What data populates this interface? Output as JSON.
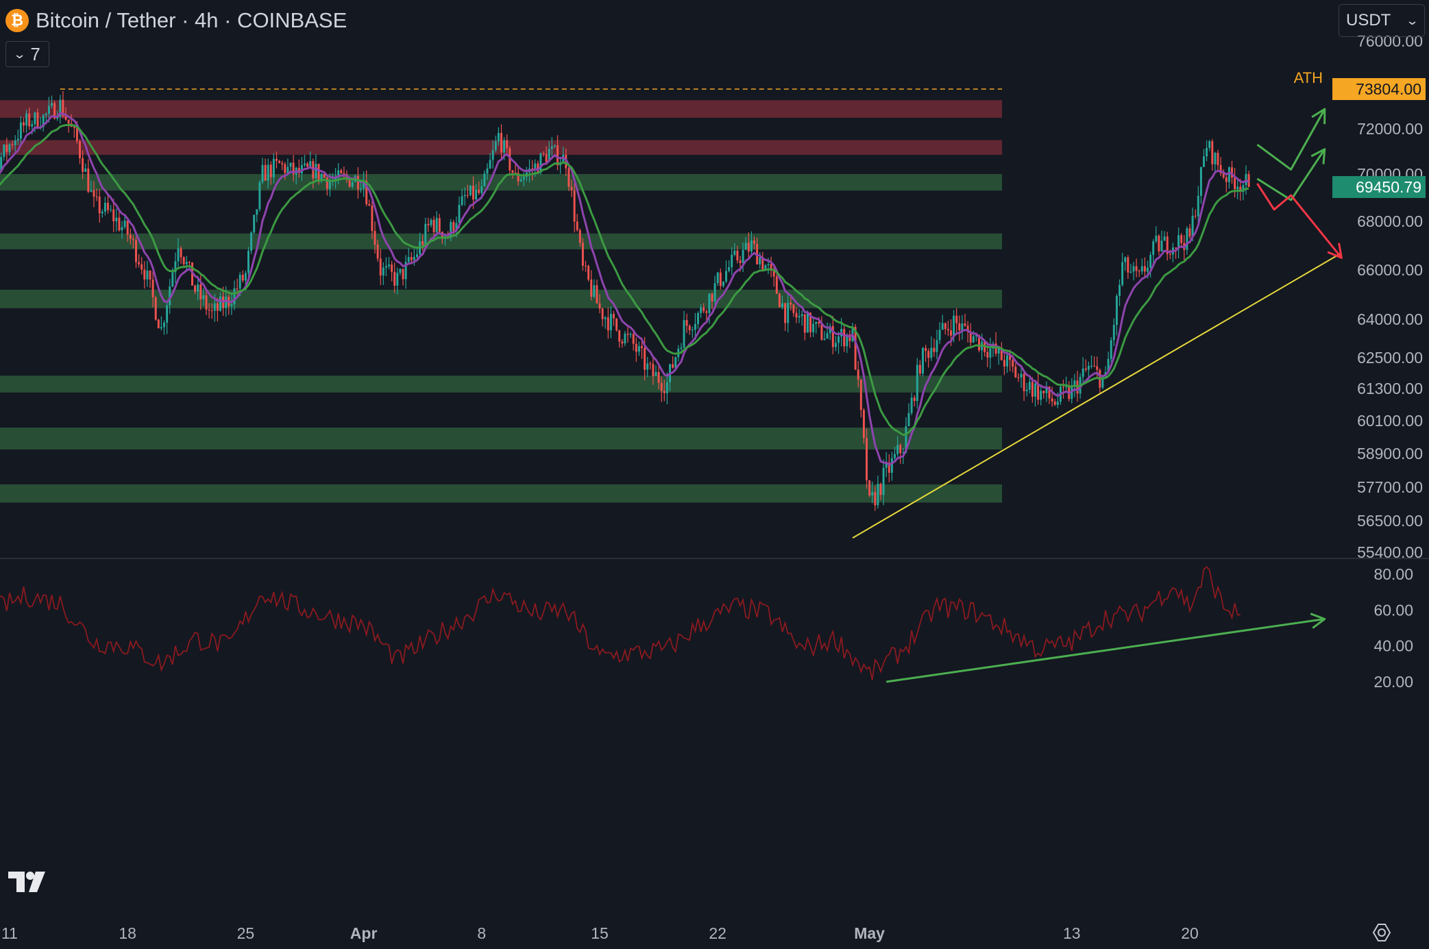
{
  "header": {
    "symbol_title": "Bitcoin / Tether · 4h · COINBASE",
    "coin_icon_glyph": "₿",
    "indicator_count": "7"
  },
  "currency": {
    "label": "USDT"
  },
  "colors": {
    "background": "#141821",
    "support_zone": "#2b5839",
    "resistance_zone": "#6e2a35",
    "candle_up": "#26a69a",
    "candle_down": "#ef5350",
    "ema_fast": "#8e44ad",
    "ema_slow": "#3c9a42",
    "trendline": "#e6d93c",
    "ath_line": "#f5a623",
    "rsi_line": "#8b1a1f",
    "arrow_green": "#4caf50",
    "arrow_red": "#f23645",
    "price_badge": "#1e8c6f"
  },
  "chart_data": [
    {
      "type": "candlestick",
      "title": "Bitcoin / Tether · 4h · COINBASE",
      "y_axis_ticks": [
        76000,
        72000,
        70000,
        68000,
        66000,
        64000,
        62500,
        61300,
        60100,
        58900,
        57700,
        56500,
        55400
      ],
      "y_tick_labels": [
        "76000.00",
        "72000.00",
        "70000.00",
        "68000.00",
        "66000.00",
        "64000.00",
        "62500.00",
        "61300.00",
        "60100.00",
        "58900.00",
        "57700.00",
        "56500.00",
        "55400.00"
      ],
      "x_tick_labels": [
        "11",
        "18",
        "25",
        "Apr",
        "8",
        "15",
        "22",
        "May",
        "13",
        "20"
      ],
      "x_tick_dates": [
        "2024-03-11",
        "2024-03-18",
        "2024-03-25",
        "2024-04-01",
        "2024-04-08",
        "2024-04-15",
        "2024-04-22",
        "2024-05-01",
        "2024-05-13",
        "2024-05-20"
      ],
      "x_range": [
        "2024-03-08",
        "2024-05-31"
      ],
      "ath": {
        "label": "ATH",
        "value": 73804.0,
        "value_label": "73804.00",
        "from_date": "2024-03-14"
      },
      "last_price": {
        "value": 69450.79,
        "label": "69450.79"
      },
      "resistance_zones": [
        [
          72500,
          73300
        ],
        [
          70850,
          71500
        ]
      ],
      "support_zones": [
        [
          69300,
          70000
        ],
        [
          66850,
          67500
        ],
        [
          64450,
          65200
        ],
        [
          61150,
          61800
        ],
        [
          59050,
          59850
        ],
        [
          57150,
          57800
        ]
      ],
      "trendline": {
        "from": {
          "date": "2024-04-30",
          "price": 55900
        },
        "to": {
          "date": "2024-05-29",
          "price": 66700
        }
      },
      "close_path_keypoints": [
        [
          "2024-03-08",
          68800
        ],
        [
          "2024-03-09",
          69600
        ],
        [
          "2024-03-10",
          70200
        ],
        [
          "2024-03-11",
          71300
        ],
        [
          "2024-03-12",
          72300
        ],
        [
          "2024-03-13",
          72500
        ],
        [
          "2024-03-14",
          73100
        ],
        [
          "2024-03-15",
          71400
        ],
        [
          "2024-03-16",
          68700
        ],
        [
          "2024-03-17",
          68300
        ],
        [
          "2024-03-18",
          67500
        ],
        [
          "2024-03-19",
          66000
        ],
        [
          "2024-03-20",
          63600
        ],
        [
          "2024-03-21",
          67200
        ],
        [
          "2024-03-22",
          65200
        ],
        [
          "2024-03-23",
          64200
        ],
        [
          "2024-03-24",
          64800
        ],
        [
          "2024-03-25",
          65800
        ],
        [
          "2024-03-26",
          70000
        ],
        [
          "2024-03-27",
          70400
        ],
        [
          "2024-03-28",
          70000
        ],
        [
          "2024-03-29",
          70200
        ],
        [
          "2024-03-30",
          69700
        ],
        [
          "2024-03-31",
          69800
        ],
        [
          "2024-04-01",
          69800
        ],
        [
          "2024-04-02",
          66000
        ],
        [
          "2024-04-03",
          65600
        ],
        [
          "2024-04-04",
          66500
        ],
        [
          "2024-04-05",
          68000
        ],
        [
          "2024-04-06",
          67400
        ],
        [
          "2024-04-07",
          69000
        ],
        [
          "2024-04-08",
          69200
        ],
        [
          "2024-04-09",
          71700
        ],
        [
          "2024-04-10",
          69800
        ],
        [
          "2024-04-11",
          70200
        ],
        [
          "2024-04-12",
          71000
        ],
        [
          "2024-04-13",
          70600
        ],
        [
          "2024-04-14",
          66000
        ],
        [
          "2024-04-15",
          64400
        ],
        [
          "2024-04-16",
          63600
        ],
        [
          "2024-04-17",
          63000
        ],
        [
          "2024-04-18",
          61900
        ],
        [
          "2024-04-19",
          61500
        ],
        [
          "2024-04-20",
          63700
        ],
        [
          "2024-04-21",
          64300
        ],
        [
          "2024-04-22",
          65500
        ],
        [
          "2024-04-23",
          66400
        ],
        [
          "2024-04-24",
          67000
        ],
        [
          "2024-04-25",
          66000
        ],
        [
          "2024-04-26",
          64300
        ],
        [
          "2024-04-27",
          64000
        ],
        [
          "2024-04-28",
          63500
        ],
        [
          "2024-04-29",
          63300
        ],
        [
          "2024-04-30",
          63400
        ],
        [
          "2024-05-01",
          57000
        ],
        [
          "2024-05-02",
          58200
        ],
        [
          "2024-05-03",
          59200
        ],
        [
          "2024-05-04",
          62300
        ],
        [
          "2024-05-05",
          63300
        ],
        [
          "2024-05-06",
          63900
        ],
        [
          "2024-05-07",
          63400
        ],
        [
          "2024-05-08",
          62900
        ],
        [
          "2024-05-09",
          62400
        ],
        [
          "2024-05-10",
          61600
        ],
        [
          "2024-05-11",
          61200
        ],
        [
          "2024-05-12",
          60800
        ],
        [
          "2024-05-13",
          61200
        ],
        [
          "2024-05-14",
          62100
        ],
        [
          "2024-05-15",
          61600
        ],
        [
          "2024-05-16",
          66200
        ],
        [
          "2024-05-17",
          65600
        ],
        [
          "2024-05-18",
          67000
        ],
        [
          "2024-05-19",
          67100
        ],
        [
          "2024-05-20",
          67300
        ],
        [
          "2024-05-21",
          71300
        ],
        [
          "2024-05-22",
          70000
        ],
        [
          "2024-05-23",
          69600
        ]
      ],
      "series": [
        {
          "role": "price",
          "style": "candles"
        },
        {
          "role": "ema-fast",
          "color": "#8e44ad"
        },
        {
          "role": "ema-slow",
          "color": "#3c9a42"
        }
      ],
      "scenario_arrows": [
        {
          "direction": "up",
          "color": "green",
          "path": [
            [
              "2024-05-24",
              71300
            ],
            [
              "2024-05-26",
              70200
            ],
            [
              "2024-05-28",
              72900
            ]
          ]
        },
        {
          "direction": "up",
          "color": "green",
          "path": [
            [
              "2024-05-24",
              69800
            ],
            [
              "2024-05-26",
              68900
            ],
            [
              "2024-05-28",
              71100
            ]
          ]
        },
        {
          "direction": "down",
          "color": "red",
          "path": [
            [
              "2024-05-24",
              69600
            ],
            [
              "2024-05-25",
              68500
            ],
            [
              "2024-05-26",
              69100
            ],
            [
              "2024-05-29",
              66500
            ]
          ]
        }
      ]
    },
    {
      "type": "line",
      "pane": "rsi",
      "y_axis_ticks": [
        80,
        60,
        40,
        20
      ],
      "y_tick_labels": [
        "80.00",
        "60.00",
        "40.00",
        "20.00"
      ],
      "rsi_keypoints": [
        [
          "2024-03-08",
          62
        ],
        [
          "2024-03-10",
          60
        ],
        [
          "2024-03-12",
          68
        ],
        [
          "2024-03-14",
          64
        ],
        [
          "2024-03-16",
          42
        ],
        [
          "2024-03-18",
          40
        ],
        [
          "2024-03-20",
          30
        ],
        [
          "2024-03-22",
          44
        ],
        [
          "2024-03-24",
          40
        ],
        [
          "2024-03-26",
          70
        ],
        [
          "2024-03-28",
          62
        ],
        [
          "2024-03-30",
          56
        ],
        [
          "2024-04-01",
          52
        ],
        [
          "2024-04-03",
          32
        ],
        [
          "2024-04-05",
          44
        ],
        [
          "2024-04-07",
          56
        ],
        [
          "2024-04-09",
          70
        ],
        [
          "2024-04-11",
          58
        ],
        [
          "2024-04-13",
          60
        ],
        [
          "2024-04-15",
          34
        ],
        [
          "2024-04-17",
          36
        ],
        [
          "2024-04-19",
          38
        ],
        [
          "2024-04-21",
          52
        ],
        [
          "2024-04-23",
          62
        ],
        [
          "2024-04-25",
          58
        ],
        [
          "2024-04-27",
          38
        ],
        [
          "2024-04-29",
          44
        ],
        [
          "2024-05-01",
          24
        ],
        [
          "2024-05-03",
          38
        ],
        [
          "2024-05-05",
          62
        ],
        [
          "2024-05-07",
          60
        ],
        [
          "2024-05-09",
          50
        ],
        [
          "2024-05-11",
          38
        ],
        [
          "2024-05-13",
          42
        ],
        [
          "2024-05-15",
          56
        ],
        [
          "2024-05-17",
          58
        ],
        [
          "2024-05-19",
          74
        ],
        [
          "2024-05-20",
          62
        ],
        [
          "2024-05-21",
          82
        ],
        [
          "2024-05-22",
          62
        ],
        [
          "2024-05-23",
          57
        ]
      ],
      "divergence_arrow": {
        "from": [
          "2024-05-02",
          20
        ],
        "to": [
          "2024-05-28",
          55
        ]
      }
    }
  ]
}
